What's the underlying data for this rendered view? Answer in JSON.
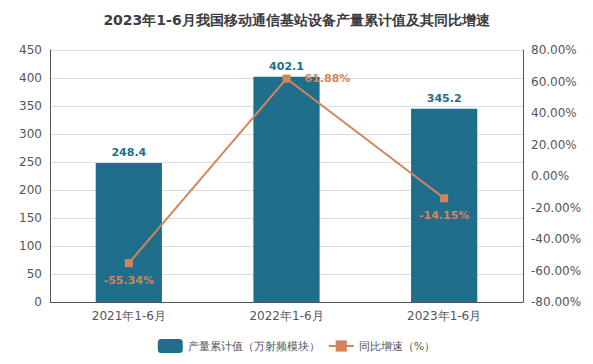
{
  "chart_data": {
    "type": "bar",
    "title": "2023年1-6月我国移动通信基站设备产量累计值及其同比增速",
    "categories": [
      "2021年1-6月",
      "2022年1-6月",
      "2023年1-6月"
    ],
    "series": [
      {
        "name": "产量累计值（万射频模块）",
        "type": "bar",
        "color": "#1f6e8c",
        "values": [
          248.4,
          402.1,
          345.2
        ]
      },
      {
        "name": "同比增速（%）",
        "type": "line",
        "color": "#d4845a",
        "marker": "square",
        "axis": "y2",
        "values": [
          -55.34,
          61.88,
          -14.15
        ],
        "value_labels": [
          "-55.34%",
          "61.88%",
          "-14.15%"
        ]
      }
    ],
    "ylim": [
      0,
      450
    ],
    "yticks": [
      0,
      50,
      100,
      150,
      200,
      250,
      300,
      350,
      400,
      450
    ],
    "y2lim": [
      -80,
      80
    ],
    "y2ticks": [
      {
        "value": -80,
        "label": "-80.00%"
      },
      {
        "value": -60,
        "label": "-60.00%"
      },
      {
        "value": -40,
        "label": "-40.00%"
      },
      {
        "value": -20,
        "label": "-20.00%"
      },
      {
        "value": 0,
        "label": "0.00%"
      },
      {
        "value": 20,
        "label": "20.00%"
      },
      {
        "value": 40,
        "label": "40.00%"
      },
      {
        "value": 60,
        "label": "60.00%"
      },
      {
        "value": 80,
        "label": "80.00%"
      }
    ],
    "grid": true,
    "legend": "bottom",
    "data_labels": true
  }
}
